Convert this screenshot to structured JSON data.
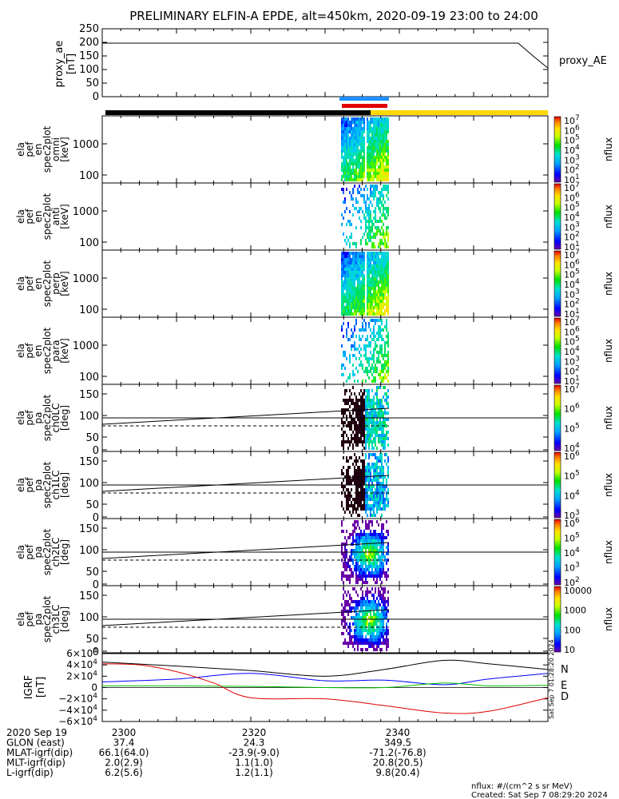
{
  "title": "PRELIMINARY ELFIN-A EPDE, alt=450km, 2020-09-19 23:00 to 24:00",
  "footer": {
    "units": "nflux: #/(cm^2 s sr MeV)",
    "created": "Created: Sat Sep  7 08:29:20 2024",
    "side_stamp": "Sat Sep  7 01:28:20 2024"
  },
  "colors": {
    "black_bar": "#000000",
    "yellow_bar": "#ffd700",
    "blue_bar": "#1e90ff",
    "red_bar": "#e00000",
    "n_trace": "#0000ff",
    "e_trace": "#00c000",
    "d_trace": "#e00000",
    "h_trace": "#000000"
  },
  "orbit_table": {
    "rows": [
      {
        "label": "2020 Sep 19",
        "values": [
          "2300",
          "2320",
          "2340"
        ]
      },
      {
        "label": "GLON (east)",
        "values": [
          "37.4",
          "24.3",
          "349.5"
        ]
      },
      {
        "label": "MLAT-igrf(dip)",
        "values": [
          "66.1(64.0)",
          "-23.9(-9.0)",
          "-71.2(-76.8)"
        ]
      },
      {
        "label": "MLT-igrf(dip)",
        "values": [
          "2.0(2.9)",
          "1.1(1.0)",
          "20.8(20.5)"
        ]
      },
      {
        "label": "L-igrf(dip)",
        "values": [
          "6.2(5.6)",
          "1.2(1.1)",
          "9.8(20.4)"
        ]
      }
    ]
  },
  "chart_data": [
    {
      "type": "line",
      "ylabel": [
        "proxy_ae",
        "[nT]"
      ],
      "legend": "proxy_AE",
      "ylim": [
        0,
        250
      ],
      "yticks": [
        "250",
        "200",
        "150",
        "100",
        "50",
        "0"
      ],
      "x": [
        0,
        56,
        58,
        60
      ],
      "y": [
        197,
        197,
        150,
        105
      ]
    },
    {
      "type": "heatmap",
      "ylabel": [
        "ela",
        "pef",
        "en",
        "spec2plot",
        "omni",
        "[keV]"
      ],
      "yticks": [
        "1000",
        "100"
      ],
      "colorbar_ticks": [
        "10^7",
        "10^6",
        "10^5",
        "10^4",
        "10^3",
        "10^2",
        "10^1"
      ],
      "colorbar_label": "nflux"
    },
    {
      "type": "heatmap",
      "ylabel": [
        "ela",
        "pef",
        "en",
        "spec2plot",
        "anti",
        "[keV]"
      ],
      "yticks": [
        "1000",
        "100"
      ],
      "colorbar_ticks": [
        "10^7",
        "10^6",
        "10^5",
        "10^4",
        "10^3",
        "10^2",
        "10^1"
      ],
      "colorbar_label": "nflux"
    },
    {
      "type": "heatmap",
      "ylabel": [
        "ela",
        "pef",
        "en",
        "spec2plot",
        "perp",
        "[keV]"
      ],
      "yticks": [
        "1000",
        "100"
      ],
      "colorbar_ticks": [
        "10^7",
        "10^6",
        "10^5",
        "10^4",
        "10^3",
        "10^2",
        "10^1"
      ],
      "colorbar_label": "nflux"
    },
    {
      "type": "heatmap",
      "ylabel": [
        "ela",
        "pef",
        "en",
        "spec2plot",
        "para",
        "[keV]"
      ],
      "yticks": [
        "1000",
        "100"
      ],
      "colorbar_ticks": [
        "10^7",
        "10^6",
        "10^5",
        "10^4",
        "10^3",
        "10^2",
        "10^1"
      ],
      "colorbar_label": "nflux"
    },
    {
      "type": "heatmap",
      "ylabel": [
        "ela",
        "pef",
        "pa",
        "spec2plot",
        "ch0LC",
        "[deg]"
      ],
      "yticks": [
        "150",
        "100",
        "50",
        "0"
      ],
      "colorbar_ticks": [
        "10^7",
        "10^6",
        "10^5",
        "10^4"
      ],
      "colorbar_label": "nflux"
    },
    {
      "type": "heatmap",
      "ylabel": [
        "ela",
        "pef",
        "pa",
        "spec2plot",
        "ch1LC",
        "[deg]"
      ],
      "yticks": [
        "150",
        "100",
        "50",
        "0"
      ],
      "colorbar_ticks": [
        "10^6",
        "10^5",
        "10^4",
        "10^3"
      ],
      "colorbar_label": "nflux"
    },
    {
      "type": "heatmap",
      "ylabel": [
        "ela",
        "pef",
        "pa",
        "spec2plot",
        "ch2LC",
        "[deg]"
      ],
      "yticks": [
        "150",
        "100",
        "50",
        "0"
      ],
      "colorbar_ticks": [
        "10^6",
        "10^5",
        "10^4",
        "10^3",
        "10^2"
      ],
      "colorbar_label": "nflux"
    },
    {
      "type": "heatmap",
      "ylabel": [
        "ela",
        "pef",
        "pa",
        "spec2plot",
        "ch3LC",
        "[deg]"
      ],
      "yticks": [
        "150",
        "100",
        "50",
        "0"
      ],
      "colorbar_ticks": [
        "10000",
        "1000",
        "100",
        "10"
      ],
      "colorbar_label": "nflux"
    },
    {
      "type": "line",
      "ylabel": [
        "IGRF",
        "[nT]"
      ],
      "yticks": [
        "6×10^4",
        "4×10^4",
        "2×10^4",
        "0",
        "−2×10^4",
        "−4×10^4",
        "−6×10^4"
      ],
      "ylim": [
        -60000,
        60000
      ],
      "legend": [
        "N",
        "E",
        "D"
      ],
      "series": [
        {
          "name": "N",
          "x": [
            0,
            10,
            20,
            30,
            38,
            46,
            52,
            60
          ],
          "y": [
            10000,
            15000,
            25000,
            12000,
            13000,
            5000,
            15000,
            25000
          ]
        },
        {
          "name": "E",
          "x": [
            0,
            10,
            20,
            30,
            38,
            46,
            52,
            60
          ],
          "y": [
            3000,
            3000,
            2000,
            0,
            0,
            8000,
            3000,
            4000
          ]
        },
        {
          "name": "D",
          "x": [
            0,
            5,
            10,
            15,
            20,
            30,
            38,
            46,
            52,
            60
          ],
          "y": [
            42000,
            40000,
            28000,
            8000,
            -18000,
            -20000,
            -32000,
            -45000,
            -42000,
            -18000
          ]
        },
        {
          "x": [
            0,
            10,
            20,
            30,
            38,
            46,
            52,
            60
          ],
          "y": [
            45000,
            38000,
            30000,
            20000,
            32000,
            48000,
            42000,
            32000
          ]
        }
      ]
    }
  ]
}
